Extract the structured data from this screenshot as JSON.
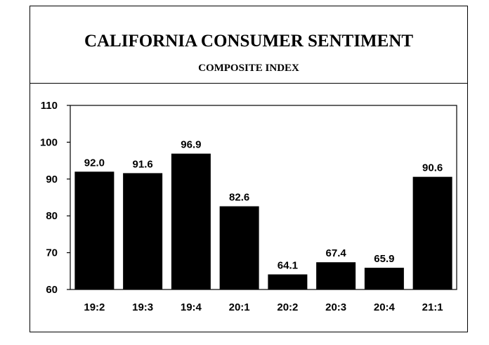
{
  "chart_data": {
    "type": "bar",
    "title": "CALIFORNIA CONSUMER SENTIMENT",
    "subtitle": "COMPOSITE INDEX",
    "categories": [
      "19:2",
      "19:3",
      "19:4",
      "20:1",
      "20:2",
      "20:3",
      "20:4",
      "21:1"
    ],
    "values": [
      92.0,
      91.6,
      96.9,
      82.6,
      64.1,
      67.4,
      65.9,
      90.6
    ],
    "value_labels": [
      "92.0",
      "91.6",
      "96.9",
      "82.6",
      "64.1",
      "67.4",
      "65.9",
      "90.6"
    ],
    "ylim": [
      60,
      110
    ],
    "yticks": [
      60,
      70,
      80,
      90,
      100,
      110
    ],
    "grid": false,
    "bar_color": "#000000"
  }
}
